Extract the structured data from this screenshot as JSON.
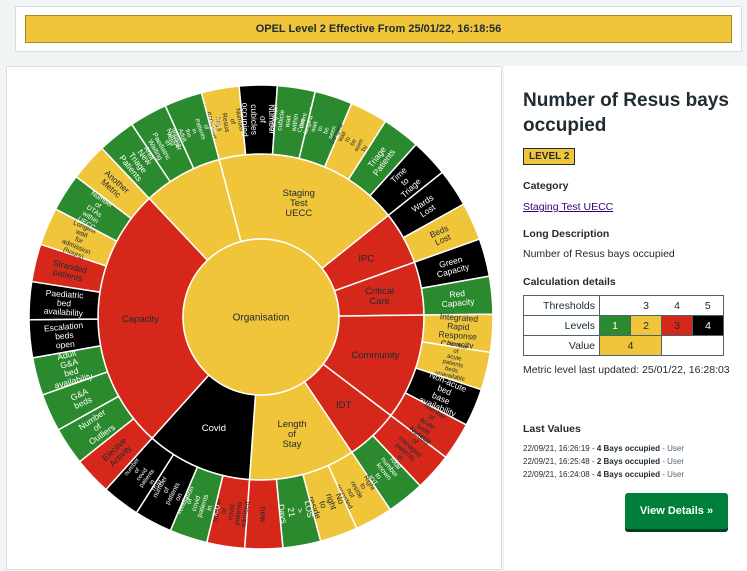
{
  "banner": {
    "text": "OPEL Level 2 Effective From 25/01/22, 16:18:56"
  },
  "metric": {
    "title": "Number of Resus bays occupied",
    "level_badge": "LEVEL 2",
    "category_label": "Category",
    "category_link": "Staging Test UECC",
    "long_desc_label": "Long Description",
    "long_desc": "Number of Resus bays occupied",
    "calc_label": "Calculation details",
    "thresholds_label": "Thresholds",
    "thresholds": [
      "3",
      "4",
      "5"
    ],
    "levels_label": "Levels",
    "levels": [
      "1",
      "2",
      "3",
      "4"
    ],
    "value_label": "Value",
    "value": "4",
    "last_updated": "Metric level last updated: 25/01/22, 16:28:03",
    "last_values_label": "Last Values",
    "last_values": [
      {
        "time": "22/09/21, 16:26:19 - ",
        "value": "4 Bays occupied",
        "by": " - User"
      },
      {
        "time": "22/09/21, 16:25:48 - ",
        "value": "2 Bays occupied",
        "by": " - User"
      },
      {
        "time": "22/09/21, 16:24:08 - ",
        "value": "4 Bays occupied",
        "by": " - User"
      }
    ],
    "button": "View Details »"
  },
  "colors": {
    "green": "#2c8a2e",
    "yellow": "#f0c53a",
    "red": "#d5281b",
    "black": "#000000"
  },
  "chart_data": {
    "type": "sunburst",
    "center": {
      "label": "Organisation",
      "color": "y"
    },
    "nodes": [
      {
        "label": "Staging\nTest\nUECC",
        "color": "y",
        "children": [
          {
            "label": "Number\nof\nResus\nbays\noccupied",
            "color": "y"
          },
          {
            "label": "Number\nof\ncubicles\noccupied",
            "color": "k"
          },
          {
            "label": "Longest\ncubicle\nwait\nwithin\nthe\ndepartment",
            "color": "g"
          },
          {
            "label": "Current\nlongest\nwait\nto\nbe\nseen\nby\nClinician",
            "color": "g"
          },
          {
            "label": "Longest\nwait\nto\nbe\nseen\nby\nClinician",
            "color": "y"
          },
          {
            "label": "Triage\nPatients",
            "color": "g"
          },
          {
            "label": "Time\nto\nTriage",
            "color": "k"
          }
        ]
      },
      {
        "label": "IPC",
        "color": "r",
        "children": [
          {
            "label": "Wards\nLost",
            "color": "k"
          },
          {
            "label": "Beds\nLost",
            "color": "y"
          }
        ]
      },
      {
        "label": "Critical\nCare",
        "color": "r",
        "children": [
          {
            "label": "Green\nCapacity",
            "color": "k"
          },
          {
            "label": "Red\nCapacity",
            "color": "g"
          }
        ]
      },
      {
        "label": "Community",
        "color": "r",
        "children": [
          {
            "label": "Integrated\nRapid\nResponse\nCapacity",
            "color": "y"
          },
          {
            "label": "Number\nof\nacute\npatients\nbeds\nunavailable\nresponse",
            "color": "y"
          },
          {
            "label": "Non-acute\nbed\nbase\navailability",
            "color": "k"
          },
          {
            "label": "Number\nof\nacute\nbeds\navailable",
            "color": "r"
          }
        ]
      },
      {
        "label": "IDT",
        "color": "r",
        "children": [
          {
            "label": "Number\nof\nmanaged\npatients\nin\nIDT",
            "color": "r"
          },
          {
            "label": "Total\nnumber\nknown\nto\nIDT",
            "color": "g"
          }
        ]
      },
      {
        "label": "Length\nof\nStay",
        "color": "y",
        "children": [
          {
            "label": "Right\nto\nreside\nnot\nrecorded",
            "color": "y"
          },
          {
            "label": "No\nright\nto\nreside",
            "color": "y"
          },
          {
            "label": "LOS\n>\n21\nDays",
            "color": "g"
          },
          {
            "label": "new",
            "color": "r"
          }
        ]
      },
      {
        "label": "Covid",
        "color": "k",
        "children": [
          {
            "label": "Number\nof\ncovid\npatients\nadmitted",
            "color": "r"
          },
          {
            "label": "Number\nof\ncovid\npatients\nin\nICU",
            "color": "g"
          },
          {
            "label": "Total\nnumber\nof\npatients\non\nventilation",
            "color": "k"
          },
          {
            "label": "Total\nnumber\nof\ncovid\npatients\nin\nTrust",
            "color": "k"
          }
        ]
      },
      {
        "label": "Capacity",
        "color": "r",
        "children": [
          {
            "label": "Elective\nActivity",
            "color": "r"
          },
          {
            "label": "Number\nof\nOutliers",
            "color": "g"
          },
          {
            "label": "G&A\nbeds",
            "color": "g"
          },
          {
            "label": "Adult\nG&A\nbed\navailability",
            "color": "g"
          },
          {
            "label": "Escalation\nbeds\nopen",
            "color": "k"
          },
          {
            "label": "Paediatric\nbed\navailability",
            "color": "k"
          },
          {
            "label": "Stranded\npatients",
            "color": "r"
          },
          {
            "label": "Longest\nwait\nfor\nadmission\n(hours)",
            "color": "y"
          },
          {
            "label": "Number\nof\nDTAs\nwithin\nUECC",
            "color": "g"
          },
          {
            "label": "Another\nMetric",
            "color": "y"
          }
        ]
      },
      {
        "label": "",
        "color": "y",
        "children": [
          {
            "label": "New\nTriage\nPatients",
            "color": "g"
          },
          {
            "label": "Total\nNumber\nin\nPaediatric\nWaiting\nArea",
            "color": "g"
          },
          {
            "label": "Total\nnumber\nof\nPatients\nin\nthe\nAdult\nWaiting\nArea",
            "color": "g"
          }
        ]
      }
    ]
  }
}
